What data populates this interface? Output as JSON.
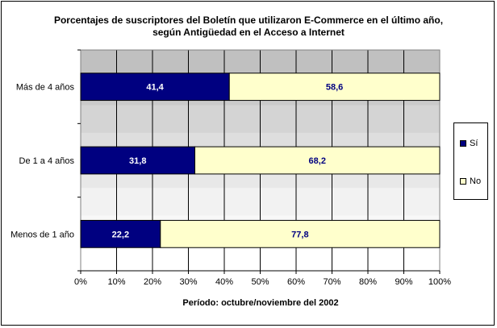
{
  "chart_data": {
    "type": "bar",
    "orientation": "horizontal",
    "stacked": true,
    "title_line1": "Porcentajes de suscriptores del Boletín que utilizaron E-Commerce en el último año,",
    "title_line2": "según Antigüedad en el Acceso a Internet",
    "xlabel": "Período: octubre/noviembre del 2002",
    "ylabel": "",
    "categories": [
      "Más de 4 años",
      "De 1 a 4 años",
      "Menos de 1 año"
    ],
    "series": [
      {
        "name": "Sí",
        "color": "#000080",
        "values": [
          41.4,
          31.8,
          22.2
        ],
        "labels": [
          "41,4",
          "31,8",
          "22,2"
        ],
        "label_color": "#ffffff"
      },
      {
        "name": "No",
        "color": "#ffffcc",
        "values": [
          58.6,
          68.2,
          77.8
        ],
        "labels": [
          "58,6",
          "68,2",
          "77,8"
        ],
        "label_color": "#000080"
      }
    ],
    "xlim": [
      0,
      100
    ],
    "xticks": [
      "0%",
      "10%",
      "20%",
      "30%",
      "40%",
      "50%",
      "60%",
      "70%",
      "80%",
      "90%",
      "100%"
    ],
    "grid": true,
    "legend_position": "right"
  }
}
